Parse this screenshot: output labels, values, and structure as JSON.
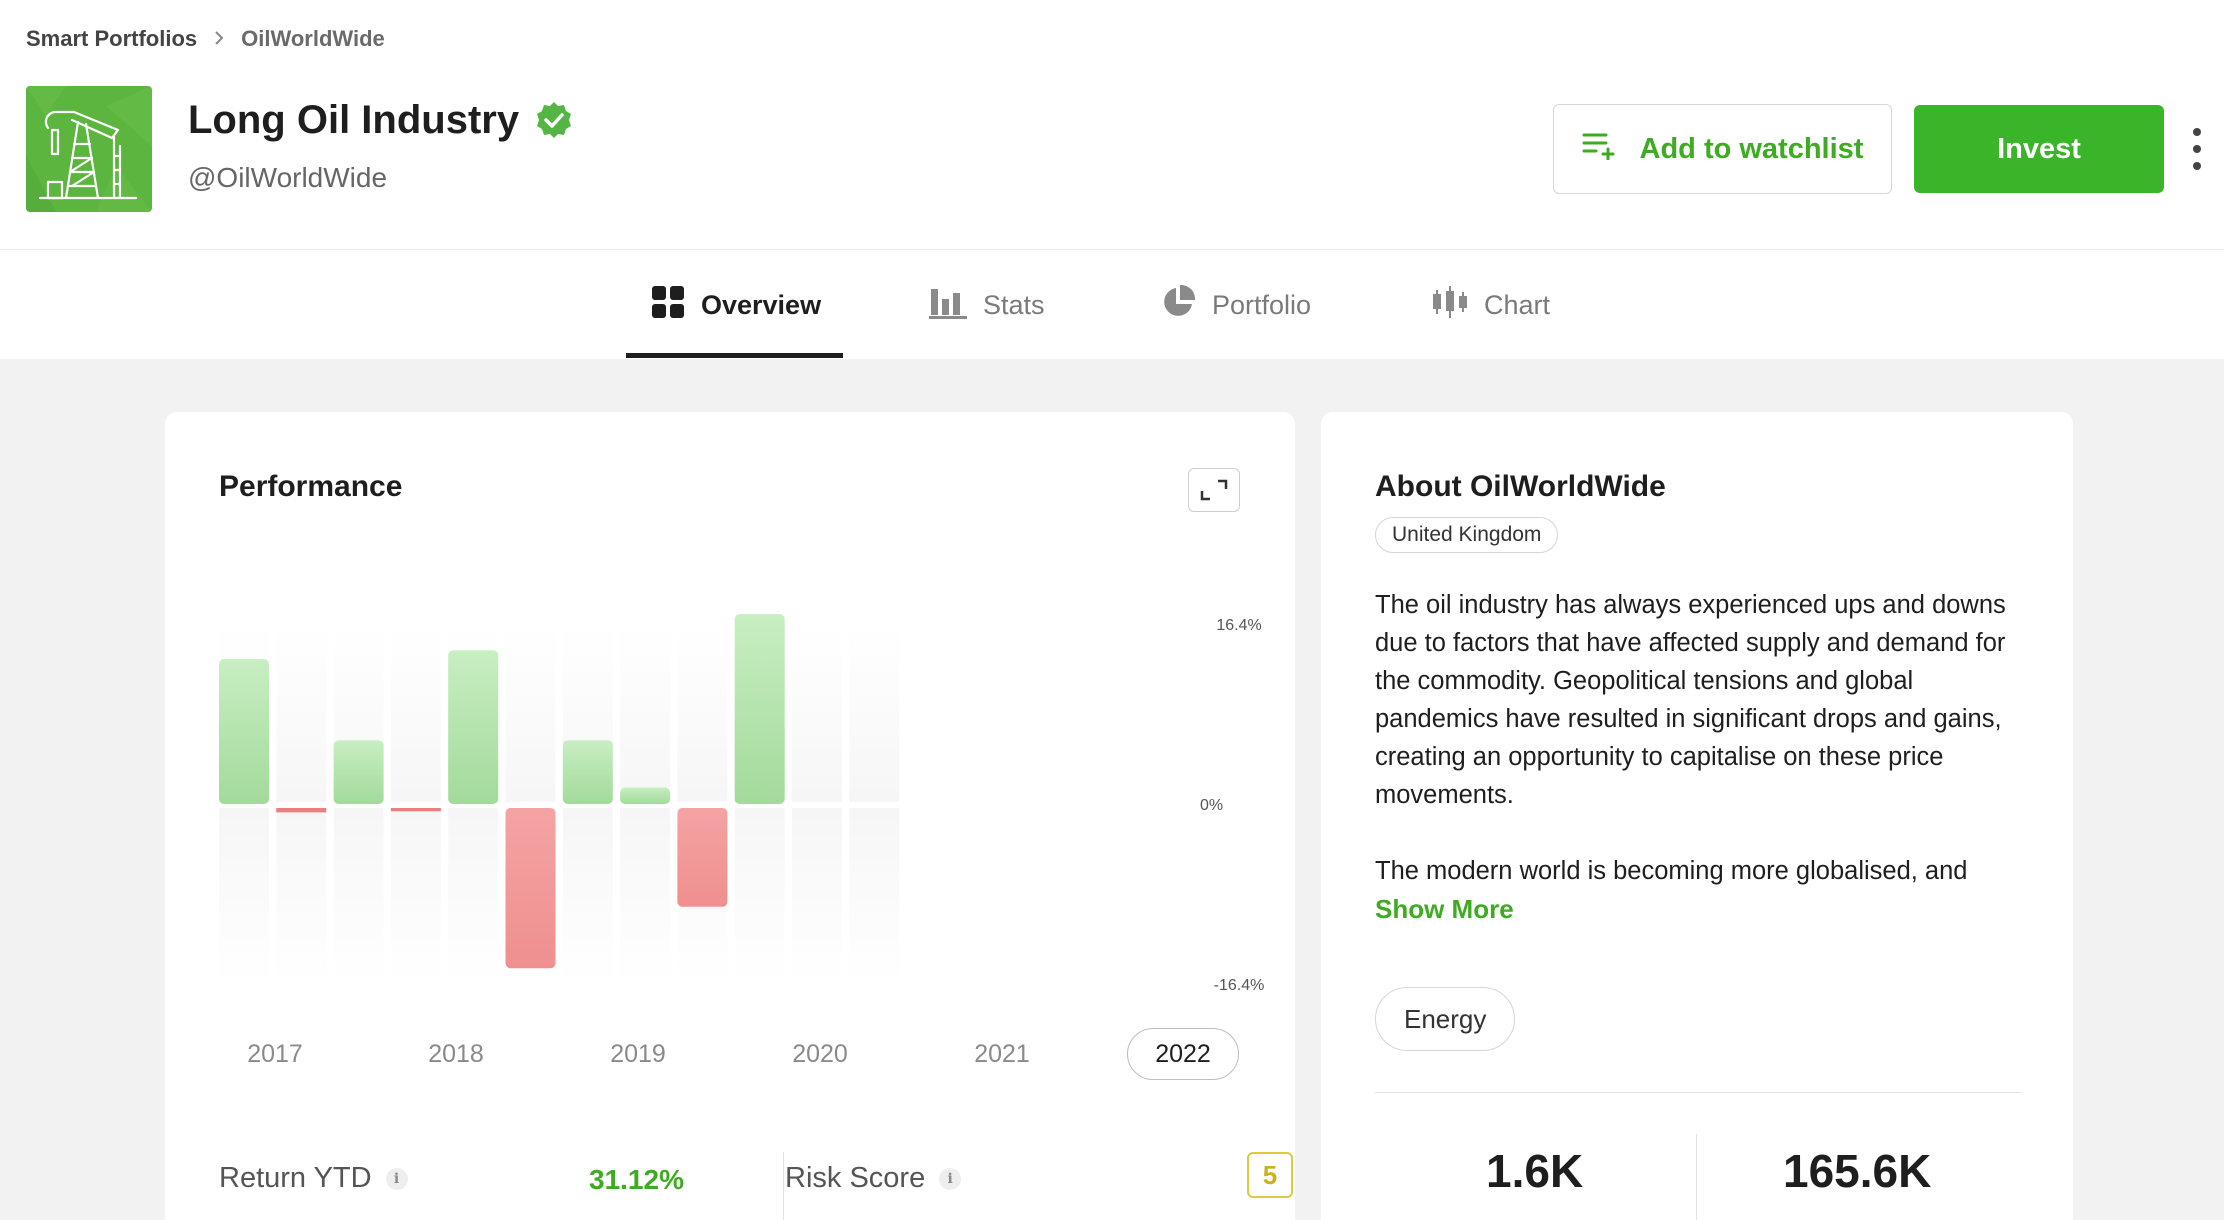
{
  "breadcrumb": {
    "root": "Smart Portfolios",
    "separator": ">",
    "current": "OilWorldWide"
  },
  "portfolio": {
    "title": "Long Oil Industry",
    "handle": "@OilWorldWide",
    "logo_icon": "oil-pump-icon",
    "verified_icon": "verified-badge-icon"
  },
  "actions": {
    "watchlist_label": "Add to watchlist",
    "invest_label": "Invest",
    "more_icon": "kebab-menu-icon"
  },
  "colors": {
    "accent": "#3ab52a",
    "link": "#3eab23",
    "positive": "#a6dfa0",
    "negative": "#f29a9a",
    "risk": "#dccb3a"
  },
  "tabs": [
    {
      "label": "Overview",
      "icon": "grid-icon",
      "active": true
    },
    {
      "label": "Stats",
      "icon": "bar-chart-icon",
      "active": false
    },
    {
      "label": "Portfolio",
      "icon": "pie-chart-icon",
      "active": false
    },
    {
      "label": "Chart",
      "icon": "candlestick-icon",
      "active": false
    }
  ],
  "performance": {
    "title": "Performance",
    "expand_icon": "expand-icon",
    "years": [
      "2017",
      "2018",
      "2019",
      "2020",
      "2021",
      "2022"
    ],
    "selected_year": "2022",
    "return_ytd_label": "Return YTD",
    "return_ytd_value": "31.12%",
    "risk_score_label": "Risk Score",
    "risk_score_value": "5",
    "info_glyph": "i"
  },
  "chart_data": {
    "type": "bar",
    "title": "Performance",
    "ylim": [
      -16.4,
      16.4
    ],
    "y_ticks": [
      "16.4%",
      "0%",
      "-16.4%"
    ],
    "x_year_labels": [
      "2017",
      "2018",
      "2019",
      "2020",
      "2021",
      "2022"
    ],
    "values": [
      13.2,
      -0.4,
      5.8,
      -0.3,
      14.0,
      -14.6,
      5.8,
      1.5,
      -9.0,
      17.3,
      0,
      0
    ],
    "grid": false
  },
  "about": {
    "title": "About OilWorldWide",
    "country": "United Kingdom",
    "paragraphs": [
      "The oil industry has always experienced ups and downs due to factors that have affected supply and demand for the commodity. Geopolitical tensions and global pandemics have resulted in significant drops and gains, creating an opportunity to capitalise on these price movements.",
      "The modern world is becoming more globalised, and"
    ],
    "show_more": "Show More",
    "tag": "Energy",
    "stats": [
      "1.6K",
      "165.6K"
    ]
  }
}
